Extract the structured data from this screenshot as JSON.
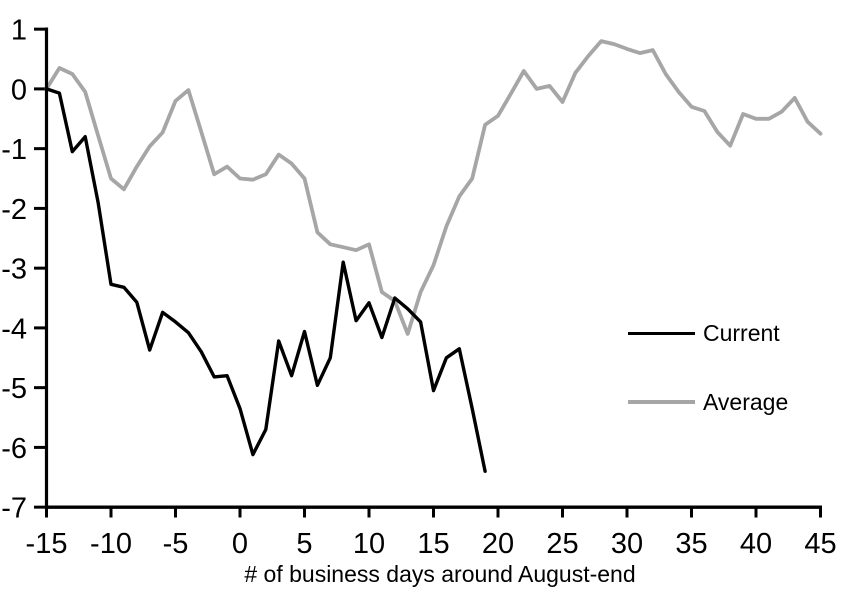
{
  "chart_data": {
    "type": "line",
    "title": "",
    "xlabel": "# of business days around August-end",
    "ylabel": "",
    "xlim": [
      -15,
      45
    ],
    "ylim": [
      -7,
      1
    ],
    "grid": false,
    "legend_position": "right-middle",
    "x_ticks": [
      -15,
      -10,
      -5,
      0,
      5,
      10,
      15,
      20,
      25,
      30,
      35,
      40,
      45
    ],
    "y_ticks": [
      1,
      0,
      -1,
      -2,
      -3,
      -4,
      -5,
      -6,
      -7
    ],
    "series": [
      {
        "name": "Current",
        "color": "#000000",
        "x_start": -15,
        "x_step": 1,
        "values": [
          0,
          -0.07,
          -1.05,
          -0.8,
          -1.9,
          -3.27,
          -3.32,
          -3.57,
          -4.37,
          -3.74,
          -3.9,
          -4.08,
          -4.4,
          -4.82,
          -4.8,
          -5.35,
          -6.12,
          -5.7,
          -4.22,
          -4.8,
          -4.06,
          -4.96,
          -4.5,
          -2.9,
          -3.88,
          -3.58,
          -4.16,
          -3.5,
          -3.68,
          -3.9,
          -5.05,
          -4.5,
          -4.35,
          -5.35,
          -6.4
        ]
      },
      {
        "name": "Average",
        "color": "#a6a6a6",
        "x_start": -15,
        "x_step": 1,
        "values": [
          0,
          0.35,
          0.25,
          -0.05,
          -0.78,
          -1.5,
          -1.68,
          -1.3,
          -0.96,
          -0.73,
          -0.2,
          -0.02,
          -0.72,
          -1.43,
          -1.3,
          -1.5,
          -1.52,
          -1.43,
          -1.1,
          -1.25,
          -1.5,
          -2.4,
          -2.6,
          -2.65,
          -2.7,
          -2.6,
          -3.4,
          -3.55,
          -4.1,
          -3.4,
          -2.95,
          -2.3,
          -1.8,
          -1.5,
          -0.6,
          -0.45,
          -0.08,
          0.3,
          0,
          0.05,
          -0.22,
          0.27,
          0.55,
          0.8,
          0.75,
          0.67,
          0.6,
          0.65,
          0.25,
          -0.05,
          -0.3,
          -0.37,
          -0.72,
          -0.95,
          -0.42,
          -0.5,
          -0.5,
          -0.38,
          -0.15,
          -0.55,
          -0.75
        ]
      }
    ]
  }
}
